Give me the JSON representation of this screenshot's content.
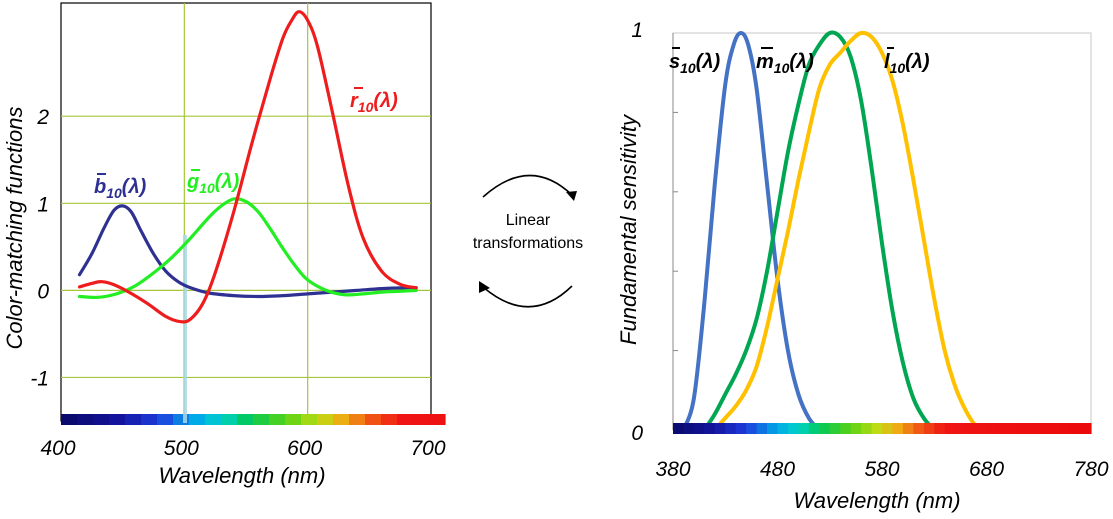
{
  "center_text": {
    "line1": "Linear",
    "line2": "transformations"
  },
  "chart_data": [
    {
      "type": "line",
      "title": "",
      "xlabel": "Wavelength (nm)",
      "ylabel": "Color-matching functions",
      "xlim": [
        400,
        700
      ],
      "ylim": [
        -1.5,
        3.3
      ],
      "x_ticks": [
        "400",
        "500",
        "600",
        "700"
      ],
      "y_ticks": [
        "-1",
        "0",
        "1",
        "2"
      ],
      "grid": true,
      "gridline_color": "#a6c53a",
      "spectrum_bar": true,
      "series": [
        {
          "id": "b10",
          "label_main": "b",
          "label_sub": "10",
          "label_rest": "(λ)",
          "color": "#2e3192",
          "points": [
            [
              415,
              0.18
            ],
            [
              425,
              0.42
            ],
            [
              435,
              0.72
            ],
            [
              443,
              0.92
            ],
            [
              450,
              0.97
            ],
            [
              457,
              0.9
            ],
            [
              465,
              0.68
            ],
            [
              475,
              0.42
            ],
            [
              485,
              0.22
            ],
            [
              495,
              0.1
            ],
            [
              505,
              0.03
            ],
            [
              520,
              -0.03
            ],
            [
              540,
              -0.06
            ],
            [
              560,
              -0.07
            ],
            [
              580,
              -0.06
            ],
            [
              600,
              -0.04
            ],
            [
              620,
              -0.02
            ],
            [
              640,
              0.0
            ],
            [
              660,
              0.02
            ],
            [
              680,
              0.03
            ],
            [
              688,
              0.03
            ]
          ]
        },
        {
          "id": "g10",
          "label_main": "g",
          "label_sub": "10",
          "label_rest": "(λ)",
          "color": "#22ee22",
          "points": [
            [
              415,
              -0.07
            ],
            [
              430,
              -0.08
            ],
            [
              445,
              -0.04
            ],
            [
              460,
              0.05
            ],
            [
              475,
              0.2
            ],
            [
              490,
              0.38
            ],
            [
              505,
              0.6
            ],
            [
              520,
              0.84
            ],
            [
              530,
              0.97
            ],
            [
              540,
              1.05
            ],
            [
              550,
              1.02
            ],
            [
              560,
              0.9
            ],
            [
              570,
              0.7
            ],
            [
              580,
              0.48
            ],
            [
              590,
              0.28
            ],
            [
              600,
              0.12
            ],
            [
              615,
              0.0
            ],
            [
              630,
              -0.05
            ],
            [
              645,
              -0.04
            ],
            [
              660,
              -0.02
            ],
            [
              675,
              -0.01
            ],
            [
              688,
              0.0
            ]
          ]
        },
        {
          "id": "r10",
          "label_main": "r",
          "label_sub": "10",
          "label_rest": "(λ)",
          "color": "#ee1c1c",
          "points": [
            [
              415,
              0.04
            ],
            [
              425,
              0.08
            ],
            [
              433,
              0.1
            ],
            [
              442,
              0.07
            ],
            [
              455,
              -0.02
            ],
            [
              470,
              -0.15
            ],
            [
              485,
              -0.3
            ],
            [
              497,
              -0.36
            ],
            [
              505,
              -0.33
            ],
            [
              515,
              -0.15
            ],
            [
              525,
              0.2
            ],
            [
              540,
              0.9
            ],
            [
              555,
              1.7
            ],
            [
              570,
              2.45
            ],
            [
              580,
              2.9
            ],
            [
              587,
              3.1
            ],
            [
              593,
              3.2
            ],
            [
              600,
              3.1
            ],
            [
              608,
              2.8
            ],
            [
              620,
              2.05
            ],
            [
              633,
              1.2
            ],
            [
              645,
              0.6
            ],
            [
              660,
              0.22
            ],
            [
              675,
              0.07
            ],
            [
              688,
              0.03
            ]
          ]
        }
      ]
    },
    {
      "type": "line",
      "title": "",
      "xlabel": "Wavelength (nm)",
      "ylabel": "Fundamental sensitivity",
      "xlim": [
        380,
        780
      ],
      "ylim": [
        0,
        1
      ],
      "x_ticks": [
        "380",
        "480",
        "580",
        "680",
        "780"
      ],
      "y_ticks": [
        "0",
        "1"
      ],
      "grid": false,
      "spectrum_bar": true,
      "series": [
        {
          "id": "s10",
          "label_main": "s",
          "label_sub": "10",
          "label_rest": "(λ)",
          "color": "#4472c4",
          "points": [
            [
              390,
              0.0
            ],
            [
              400,
              0.08
            ],
            [
              410,
              0.32
            ],
            [
              420,
              0.62
            ],
            [
              430,
              0.87
            ],
            [
              438,
              0.97
            ],
            [
              445,
              1.0
            ],
            [
              452,
              0.97
            ],
            [
              460,
              0.86
            ],
            [
              470,
              0.62
            ],
            [
              480,
              0.38
            ],
            [
              490,
              0.2
            ],
            [
              500,
              0.09
            ],
            [
              510,
              0.03
            ],
            [
              520,
              0.0
            ]
          ]
        },
        {
          "id": "m10",
          "label_main": "m",
          "label_sub": "10",
          "label_rest": "(λ)",
          "color": "#00a651",
          "points": [
            [
              410,
              0.0
            ],
            [
              420,
              0.04
            ],
            [
              430,
              0.09
            ],
            [
              440,
              0.14
            ],
            [
              450,
              0.2
            ],
            [
              460,
              0.28
            ],
            [
              470,
              0.4
            ],
            [
              480,
              0.55
            ],
            [
              490,
              0.7
            ],
            [
              500,
              0.82
            ],
            [
              510,
              0.92
            ],
            [
              520,
              0.97
            ],
            [
              530,
              1.0
            ],
            [
              540,
              0.99
            ],
            [
              550,
              0.94
            ],
            [
              560,
              0.83
            ],
            [
              570,
              0.66
            ],
            [
              580,
              0.47
            ],
            [
              590,
              0.3
            ],
            [
              600,
              0.17
            ],
            [
              610,
              0.08
            ],
            [
              620,
              0.03
            ],
            [
              630,
              0.0
            ]
          ]
        },
        {
          "id": "l10",
          "label_main": "l",
          "label_sub": "10",
          "label_rest": "(λ)",
          "color": "#ffc000",
          "points": [
            [
              420,
              0.0
            ],
            [
              430,
              0.03
            ],
            [
              440,
              0.06
            ],
            [
              450,
              0.1
            ],
            [
              460,
              0.16
            ],
            [
              470,
              0.26
            ],
            [
              480,
              0.38
            ],
            [
              490,
              0.5
            ],
            [
              500,
              0.63
            ],
            [
              510,
              0.75
            ],
            [
              520,
              0.86
            ],
            [
              530,
              0.92
            ],
            [
              540,
              0.95
            ],
            [
              550,
              0.98
            ],
            [
              560,
              1.0
            ],
            [
              570,
              0.99
            ],
            [
              580,
              0.95
            ],
            [
              590,
              0.88
            ],
            [
              600,
              0.77
            ],
            [
              610,
              0.63
            ],
            [
              620,
              0.48
            ],
            [
              630,
              0.33
            ],
            [
              640,
              0.2
            ],
            [
              650,
              0.11
            ],
            [
              660,
              0.05
            ],
            [
              670,
              0.01
            ],
            [
              680,
              0.0
            ]
          ]
        }
      ]
    }
  ]
}
